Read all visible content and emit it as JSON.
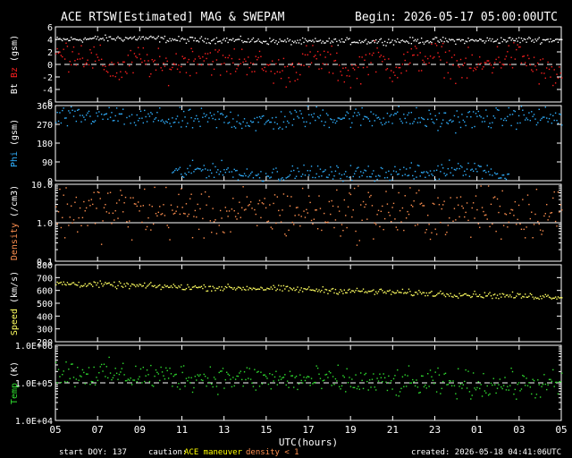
{
  "header": {
    "title": "ACE RTSW[Estimated] MAG & SWEPAM",
    "begin": "Begin: 2026-05-17 05:00:00UTC"
  },
  "footer": {
    "start_doy": "start DOY: 137",
    "caution_label": "caution:",
    "caution_maneuver": "ACE maneuver",
    "caution_density": "density < 1",
    "created": "created: 2026-05-18 04:41:06UTC"
  },
  "colors": {
    "bt": "#ffffff",
    "bz": "#ff2020",
    "phi": "#30b0ff",
    "density": "#ff9050",
    "speed": "#ffff60",
    "temp": "#30e030",
    "axes": "#ffffff",
    "maneuver": "#ffff00",
    "lowdensity": "#ff9050"
  },
  "chart_data": {
    "type": "scatter",
    "xlabel": "UTC(hours)",
    "x_ticks": [
      "05",
      "07",
      "09",
      "11",
      "13",
      "15",
      "17",
      "19",
      "21",
      "23",
      "01",
      "03",
      "05"
    ],
    "x_range_hours": [
      0,
      24
    ],
    "panels": [
      {
        "id": "mag",
        "ylabel_parts": [
          {
            "text": "Bt",
            "color": "bt"
          },
          {
            "text": "Bz",
            "color": "bz"
          },
          {
            "text": "(gsm)",
            "color": "axes"
          }
        ],
        "ylim": [
          -6,
          6
        ],
        "yticks": [
          "6",
          "4",
          "2",
          "0",
          "-2",
          "-4",
          "-6"
        ],
        "ytick_values": [
          6,
          4,
          2,
          0,
          -2,
          -4,
          -6
        ],
        "reference": 0,
        "scale": "linear",
        "series": [
          {
            "name": "Bt",
            "color": "bt",
            "x": [
              0,
              2,
              4,
              6,
              8,
              10,
              12,
              14,
              16,
              18,
              20,
              22,
              24
            ],
            "y": [
              4.0,
              4.2,
              4.3,
              4.0,
              4.0,
              3.8,
              3.7,
              3.8,
              3.8,
              3.9,
              3.9,
              4.0,
              4.0
            ],
            "jitter": 0.25
          },
          {
            "name": "Bz",
            "color": "bz",
            "x": [
              0,
              1,
              2,
              3,
              4,
              5,
              6,
              7,
              8,
              9,
              10,
              11,
              12,
              13,
              14,
              15,
              16,
              17,
              18,
              19,
              20,
              21,
              22,
              23,
              24
            ],
            "y": [
              1.5,
              2.0,
              0.5,
              -1.0,
              1.0,
              -0.5,
              0.5,
              1.5,
              0.0,
              1.0,
              -0.5,
              -1.0,
              1.0,
              0.5,
              -1.5,
              1.5,
              -0.5,
              1.0,
              1.5,
              0.0,
              -0.5,
              1.0,
              1.5,
              -1.0,
              -2.0
            ],
            "jitter": 1.2
          }
        ]
      },
      {
        "id": "phi",
        "ylabel_parts": [
          {
            "text": "Phi",
            "color": "phi"
          },
          {
            "text": "(gsm)",
            "color": "axes"
          }
        ],
        "ylim": [
          0,
          360
        ],
        "yticks": [
          "360",
          "270",
          "180",
          "90",
          "0"
        ],
        "ytick_values": [
          360,
          270,
          180,
          90,
          0
        ],
        "scale": "linear",
        "series": [
          {
            "name": "Phi",
            "color": "phi",
            "x": [
              0,
              2,
              4,
              6,
              8,
              10,
              12,
              14,
              16,
              18,
              20,
              22,
              24
            ],
            "y": [
              300,
              315,
              305,
              290,
              300,
              280,
              310,
              305,
              310,
              290,
              300,
              310,
              300
            ],
            "jitter": 25
          },
          {
            "name": "Phi-low",
            "color": "phi",
            "x": [
              6,
              7,
              8,
              9,
              18,
              19,
              20,
              21
            ],
            "y": [
              40,
              60,
              50,
              30,
              40,
              70,
              60,
              30
            ],
            "jitter": 20
          }
        ]
      },
      {
        "id": "density",
        "ylabel_parts": [
          {
            "text": "Density",
            "color": "density"
          },
          {
            "text": "(/cm3)",
            "color": "axes"
          }
        ],
        "ylim": [
          0.1,
          10
        ],
        "yticks": [
          "10.0",
          "1.0",
          "0.1"
        ],
        "ytick_values": [
          10,
          1,
          0.1
        ],
        "reference": 1,
        "scale": "log",
        "series": [
          {
            "name": "Density",
            "color": "density",
            "x": [
              0,
              2,
              4,
              6,
              8,
              10,
              12,
              14,
              16,
              18,
              20,
              22,
              24
            ],
            "y": [
              2.0,
              2.2,
              2.0,
              2.1,
              1.9,
              2.0,
              2.0,
              2.1,
              1.8,
              1.9,
              2.2,
              2.0,
              1.8
            ],
            "jitter": 0.35
          }
        ]
      },
      {
        "id": "speed",
        "ylabel_parts": [
          {
            "text": "Speed",
            "color": "speed"
          },
          {
            "text": "(km/s)",
            "color": "axes"
          }
        ],
        "ylim": [
          200,
          800
        ],
        "yticks": [
          "800",
          "700",
          "600",
          "500",
          "400",
          "300",
          "200"
        ],
        "ytick_values": [
          800,
          700,
          600,
          500,
          400,
          300,
          200
        ],
        "scale": "linear",
        "series": [
          {
            "name": "Speed",
            "color": "speed",
            "x": [
              0,
              2,
              4,
              6,
              8,
              10,
              12,
              14,
              16,
              18,
              20,
              22,
              24
            ],
            "y": [
              660,
              650,
              640,
              630,
              625,
              620,
              610,
              600,
              590,
              580,
              570,
              560,
              555
            ],
            "jitter": 12
          }
        ]
      },
      {
        "id": "temp",
        "ylabel_parts": [
          {
            "text": "Temp",
            "color": "temp"
          },
          {
            "text": "(K)",
            "color": "axes"
          }
        ],
        "ylim": [
          10000,
          1000000
        ],
        "yticks": [
          "1.0E+06",
          "1.0E+05",
          "1.0E+04"
        ],
        "ytick_values": [
          1000000,
          100000,
          10000
        ],
        "reference": 100000,
        "scale": "log",
        "series": [
          {
            "name": "Temp",
            "color": "temp",
            "x": [
              0,
              2,
              4,
              6,
              8,
              10,
              12,
              14,
              16,
              18,
              20,
              22,
              24
            ],
            "y": [
              200000,
              180000,
              160000,
              150000,
              140000,
              130000,
              120000,
              110000,
              100000,
              100000,
              95000,
              90000,
              90000
            ],
            "jitter": 0.18
          }
        ]
      }
    ]
  }
}
